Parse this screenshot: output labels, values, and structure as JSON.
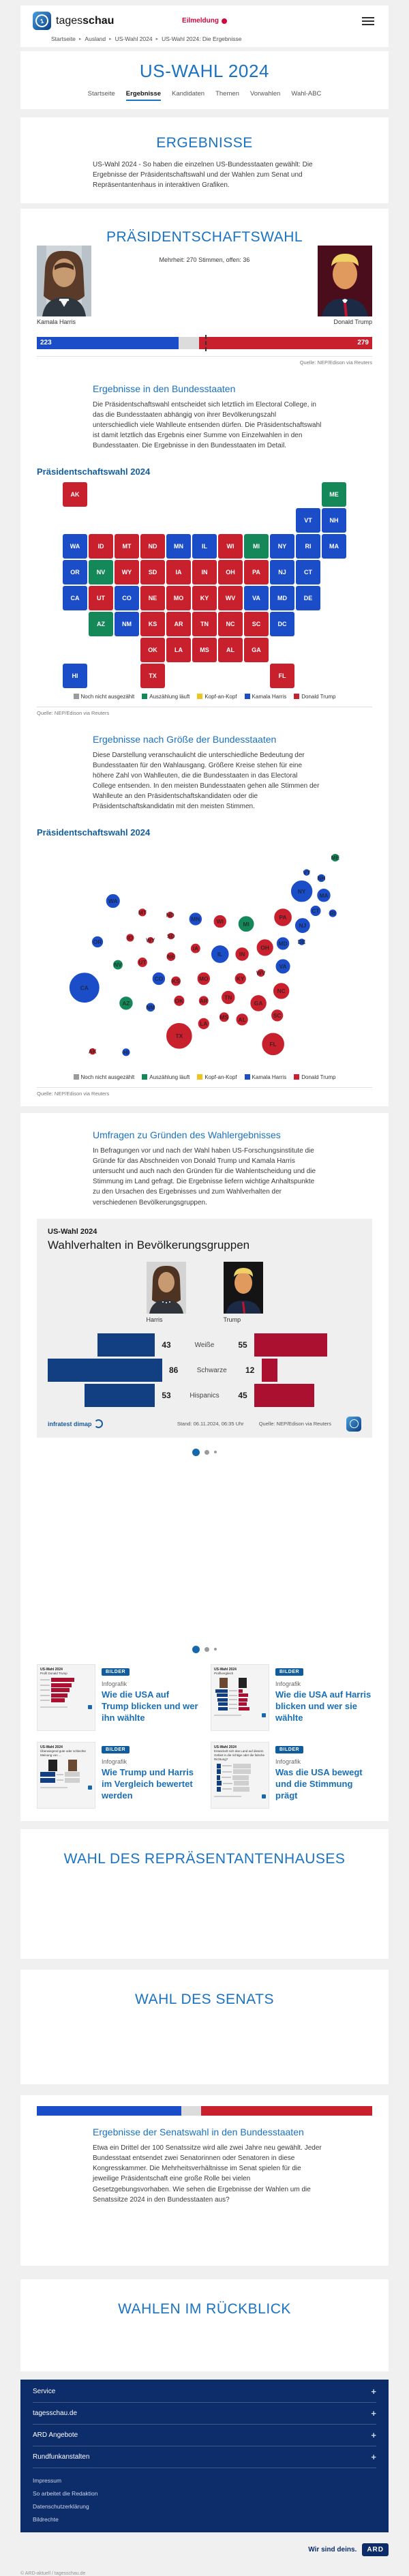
{
  "header": {
    "brand_light": "tages",
    "brand_bold": "schau",
    "breaking_label": "Eilmeldung",
    "breadcrumb": [
      "Startseite",
      "Ausland",
      "US-Wahl 2024",
      "US-Wahl 2024: Die Ergebnisse"
    ]
  },
  "hub": {
    "title": "US-WAHL 2024",
    "tabs": [
      {
        "label": "Startseite",
        "active": false
      },
      {
        "label": "Ergebnisse",
        "active": true
      },
      {
        "label": "Kandidaten",
        "active": false
      },
      {
        "label": "Themen",
        "active": false
      },
      {
        "label": "Vorwahlen",
        "active": false
      },
      {
        "label": "Wahl-ABC",
        "active": false
      }
    ]
  },
  "sections": {
    "ergebnisse": {
      "title": "ERGEBNISSE",
      "intro": "US-Wahl 2024 - So haben die einzelnen US-Bundesstaaten gewählt: Die Ergebnisse der Präsidentschaftswahl und der Wahlen zum Senat und Repräsentantenhaus in interaktiven Grafiken."
    },
    "praesident": {
      "title": "PRÄSIDENTSCHAFTSWAHL",
      "majority_line": "Mehrheit: 270 Stimmen, offen: 36",
      "harris_name": "Kamala Harris",
      "trump_name": "Donald Trump",
      "source": "Quelle: NEP/Edison via Reuters"
    },
    "map_section": {
      "heading": "Ergebnisse in den Bundesstaaten",
      "text": "Die Präsidentschaftswahl entscheidet sich letztlich im Electoral College, in das die Bundesstaaten abhängig von ihrer Bevölkerungszahl unterschiedlich viele Wahlleute entsenden dürfen. Die Präsidentschaftswahl ist damit letztlich das Ergebnis einer Summe von Einzelwahlen in den Bundesstaaten. Die Ergebnisse in den Bundesstaaten im Detail."
    },
    "bubble_section": {
      "heading": "Ergebnisse nach Größe der Bundesstaaten",
      "text": "Diese Darstellung veranschaulicht die unterschiedliche Bedeutung der Bundesstaaten für den Wahlausgang. Größere Kreise stehen für eine höhere Zahl von Wahlleuten, die die Bundesstaaten in das Electoral College entsenden. In den meisten Bundesstaaten gehen alle Stimmen der Wahlleute an den Präsidentschaftskandidaten oder die Präsidentschaftskandidatin mit den meisten Stimmen."
    },
    "umfragen": {
      "heading": "Umfragen zu Gründen des Wahlergebnisses",
      "text": "In Befragungen vor und nach der Wahl haben US-Forschungsinstitute die Gründe für das Abschneiden von Donald Trump und Kamala Harris untersucht und auch nach den Gründen für die Wahlentscheidung und die Stimmung im Land gefragt. Die Ergebnisse liefern wichtige Anhaltspunkte zu den Ursachen des Ergebnisses und zum Wahlverhalten der verschiedenen Bevölkerungsgruppen."
    },
    "repraesentantenhaus": {
      "title": "WAHL DES REPRÄSENTANTENHAUSES"
    },
    "senat": {
      "title": "WAHL DES SENATS"
    },
    "senat_ergebnisse": {
      "heading": "Ergebnisse der Senatswahl in den Bundesstaaten",
      "text": "Etwa ein Drittel der 100 Senatssitze wird alle zwei Jahre neu gewählt. Jeder Bundesstaat entsendet zwei Senatorinnen oder Senatoren in diese Kongresskammer. Die Mehrheitsverhältnisse im Senat spielen für die jeweilige Präsidentschaft eine große Rolle bei vielen Gesetzgebungsvorhaben. Wie sehen die Ergebnisse der Wahlen um die Senatssitze 2024 in den Bundesstaaten aus?"
    },
    "rueckblick": {
      "title": "WAHLEN IM RÜCKBLICK"
    }
  },
  "chart_titles": {
    "map": "Präsidentschaftswahl 2024",
    "bubble": "Präsidentschaftswahl 2024"
  },
  "party_colors": {
    "harris": "#1b4dc8",
    "trump": "#c9202e",
    "counting": "#15885a",
    "tossup": "#eec41e",
    "open": "#9b9b9b"
  },
  "chart_data": [
    {
      "id": "electoral_college_bar",
      "type": "bar",
      "title": "Präsidentschaftswahl Electoral College",
      "majority": 270,
      "open_votes": 36,
      "total": 538,
      "series": [
        {
          "name": "Kamala Harris",
          "value": 223,
          "color": "#1b4dc8"
        },
        {
          "name": "Donald Trump",
          "value": 279,
          "color": "#c9202e"
        }
      ],
      "source": "Quelle: NEP/Edison via Reuters"
    },
    {
      "id": "state_results_map",
      "type": "heatmap",
      "title": "Präsidentschaftswahl 2024",
      "legend": [
        {
          "key": "open",
          "label": "Noch nicht ausgezählt",
          "color": "#9b9b9b"
        },
        {
          "key": "counting",
          "label": "Auszählung läuft",
          "color": "#15885a"
        },
        {
          "key": "tossup",
          "label": "Kopf-an-Kopf",
          "color": "#eec41e"
        },
        {
          "key": "harris",
          "label": "Kamala Harris",
          "color": "#1b4dc8"
        },
        {
          "key": "trump",
          "label": "Donald Trump",
          "color": "#c9202e"
        }
      ],
      "source": "Quelle: NEP/Edison via Reuters",
      "states": [
        {
          "a": "AK",
          "p": "trump",
          "ev": 3,
          "c": 0,
          "r": 0,
          "x": 90,
          "y": 283
        },
        {
          "a": "ME",
          "p": "counting",
          "ev": 4,
          "c": 10,
          "r": 0,
          "x": 387,
          "y": 46
        },
        {
          "a": "VT",
          "p": "harris",
          "ev": 3,
          "c": 9,
          "r": 1,
          "x": 352,
          "y": 64
        },
        {
          "a": "NH",
          "p": "harris",
          "ev": 4,
          "c": 10,
          "r": 1,
          "x": 370,
          "y": 71
        },
        {
          "a": "WA",
          "p": "harris",
          "ev": 12,
          "c": 0,
          "r": 2,
          "x": 115,
          "y": 99
        },
        {
          "a": "ID",
          "p": "trump",
          "ev": 4,
          "c": 1,
          "r": 2,
          "x": 136,
          "y": 144
        },
        {
          "a": "MT",
          "p": "trump",
          "ev": 4,
          "c": 2,
          "r": 2,
          "x": 151,
          "y": 113
        },
        {
          "a": "ND",
          "p": "trump",
          "ev": 3,
          "c": 3,
          "r": 2,
          "x": 185,
          "y": 116
        },
        {
          "a": "MN",
          "p": "harris",
          "ev": 10,
          "c": 4,
          "r": 2,
          "x": 216,
          "y": 121
        },
        {
          "a": "IL",
          "p": "harris",
          "ev": 19,
          "c": 5,
          "r": 2,
          "x": 246,
          "y": 164
        },
        {
          "a": "WI",
          "p": "trump",
          "ev": 10,
          "c": 6,
          "r": 2,
          "x": 246,
          "y": 124
        },
        {
          "a": "MI",
          "p": "counting",
          "ev": 15,
          "c": 7,
          "r": 2,
          "x": 278,
          "y": 127
        },
        {
          "a": "NY",
          "p": "harris",
          "ev": 28,
          "c": 8,
          "r": 2,
          "x": 346,
          "y": 87
        },
        {
          "a": "RI",
          "p": "harris",
          "ev": 4,
          "c": 9,
          "r": 2,
          "x": 384,
          "y": 114
        },
        {
          "a": "MA",
          "p": "harris",
          "ev": 11,
          "c": 10,
          "r": 2,
          "x": 373,
          "y": 92
        },
        {
          "a": "OR",
          "p": "harris",
          "ev": 8,
          "c": 0,
          "r": 3,
          "x": 96,
          "y": 149
        },
        {
          "a": "NV",
          "p": "counting",
          "ev": 6,
          "c": 1,
          "r": 3,
          "x": 121,
          "y": 177
        },
        {
          "a": "WY",
          "p": "trump",
          "ev": 3,
          "c": 2,
          "r": 3,
          "x": 161,
          "y": 147
        },
        {
          "a": "SD",
          "p": "trump",
          "ev": 3,
          "c": 3,
          "r": 3,
          "x": 186,
          "y": 142
        },
        {
          "a": "IA",
          "p": "trump",
          "ev": 6,
          "c": 4,
          "r": 3,
          "x": 216,
          "y": 157
        },
        {
          "a": "IN",
          "p": "trump",
          "ev": 11,
          "c": 5,
          "r": 3,
          "x": 273,
          "y": 164
        },
        {
          "a": "OH",
          "p": "trump",
          "ev": 17,
          "c": 6,
          "r": 3,
          "x": 301,
          "y": 156
        },
        {
          "a": "PA",
          "p": "trump",
          "ev": 19,
          "c": 7,
          "r": 3,
          "x": 323,
          "y": 119
        },
        {
          "a": "NJ",
          "p": "harris",
          "ev": 14,
          "c": 8,
          "r": 3,
          "x": 347,
          "y": 129
        },
        {
          "a": "CT",
          "p": "harris",
          "ev": 7,
          "c": 9,
          "r": 3,
          "x": 363,
          "y": 111
        },
        {
          "a": "CA",
          "p": "harris",
          "ev": 54,
          "c": 0,
          "r": 4,
          "x": 80,
          "y": 205
        },
        {
          "a": "UT",
          "p": "trump",
          "ev": 6,
          "c": 1,
          "r": 4,
          "x": 151,
          "y": 174
        },
        {
          "a": "CO",
          "p": "harris",
          "ev": 10,
          "c": 2,
          "r": 4,
          "x": 171,
          "y": 194
        },
        {
          "a": "NE",
          "p": "trump",
          "ev": 5,
          "c": 3,
          "r": 4,
          "x": 186,
          "y": 167
        },
        {
          "a": "MO",
          "p": "trump",
          "ev": 10,
          "c": 4,
          "r": 4,
          "x": 226,
          "y": 194
        },
        {
          "a": "KY",
          "p": "trump",
          "ev": 8,
          "c": 5,
          "r": 4,
          "x": 271,
          "y": 194
        },
        {
          "a": "WV",
          "p": "trump",
          "ev": 4,
          "c": 6,
          "r": 4,
          "x": 296,
          "y": 187
        },
        {
          "a": "VA",
          "p": "harris",
          "ev": 13,
          "c": 7,
          "r": 4,
          "x": 323,
          "y": 179
        },
        {
          "a": "MD",
          "p": "harris",
          "ev": 10,
          "c": 8,
          "r": 4,
          "x": 323,
          "y": 151
        },
        {
          "a": "DE",
          "p": "harris",
          "ev": 3,
          "c": 9,
          "r": 4,
          "x": 346,
          "y": 149
        },
        {
          "a": "AZ",
          "p": "counting",
          "ev": 11,
          "c": 1,
          "r": 5,
          "x": 131,
          "y": 224
        },
        {
          "a": "NM",
          "p": "harris",
          "ev": 5,
          "c": 2,
          "r": 5,
          "x": 161,
          "y": 229
        },
        {
          "a": "KS",
          "p": "trump",
          "ev": 6,
          "c": 3,
          "r": 5,
          "x": 192,
          "y": 197
        },
        {
          "a": "AR",
          "p": "trump",
          "ev": 6,
          "c": 4,
          "r": 5,
          "x": 226,
          "y": 221
        },
        {
          "a": "TN",
          "p": "trump",
          "ev": 11,
          "c": 5,
          "r": 5,
          "x": 256,
          "y": 217
        },
        {
          "a": "NC",
          "p": "trump",
          "ev": 16,
          "c": 6,
          "r": 5,
          "x": 321,
          "y": 209
        },
        {
          "a": "SC",
          "p": "trump",
          "ev": 9,
          "c": 7,
          "r": 5,
          "x": 316,
          "y": 239
        },
        {
          "a": "DC",
          "p": "harris",
          "ev": 3,
          "c": 8,
          "r": 5,
          "x": null,
          "y": null
        },
        {
          "a": "OK",
          "p": "trump",
          "ev": 7,
          "c": 3,
          "r": 6,
          "x": 196,
          "y": 221
        },
        {
          "a": "LA",
          "p": "trump",
          "ev": 8,
          "c": 4,
          "r": 6,
          "x": 226,
          "y": 249
        },
        {
          "a": "MS",
          "p": "trump",
          "ev": 6,
          "c": 5,
          "r": 6,
          "x": 251,
          "y": 241
        },
        {
          "a": "AL",
          "p": "trump",
          "ev": 9,
          "c": 6,
          "r": 6,
          "x": 273,
          "y": 244
        },
        {
          "a": "GA",
          "p": "trump",
          "ev": 16,
          "c": 7,
          "r": 6,
          "x": 293,
          "y": 224
        },
        {
          "a": "HI",
          "p": "harris",
          "ev": 4,
          "c": 0,
          "r": 7,
          "x": 131,
          "y": 284
        },
        {
          "a": "TX",
          "p": "trump",
          "ev": 40,
          "c": 3,
          "r": 7,
          "x": 196,
          "y": 264
        },
        {
          "a": "FL",
          "p": "trump",
          "ev": 30,
          "c": 8,
          "r": 7,
          "x": 311,
          "y": 274
        }
      ]
    },
    {
      "id": "state_bubble_map",
      "type": "scatter",
      "title": "Präsidentschaftswahl 2024",
      "note": "Kreisgröße entspricht Zahl der Wahlleute; Daten identisch mit state_results_map.states",
      "source": "Quelle: NEP/Edison via Reuters"
    },
    {
      "id": "demographics",
      "type": "bar",
      "kicker": "US-Wahl 2024",
      "title": "Wahlverhalten in Bevölkerungsgruppen",
      "candidates": [
        {
          "name": "Harris"
        },
        {
          "name": "Trump"
        }
      ],
      "categories": [
        "Weiße",
        "Schwarze",
        "Hispanics"
      ],
      "series": [
        {
          "name": "Harris",
          "color": "#123f82",
          "values": [
            43,
            86,
            53
          ]
        },
        {
          "name": "Trump",
          "color": "#ac1030",
          "values": [
            55,
            12,
            45
          ]
        }
      ],
      "stand": "Stand: 06.11.2024, 06:35 Uhr",
      "source": "Quelle: NEP/Edison via Reuters",
      "provider": "infratest dimap"
    },
    {
      "id": "senate_bar",
      "type": "bar",
      "segments": [
        {
          "party": "dem",
          "width_pct": 43,
          "color": "#1b4dc8"
        },
        {
          "party": "offen",
          "width_pct": 6,
          "color": "#dcdcdc"
        },
        {
          "party": "rep",
          "width_pct": 51,
          "color": "#c9202e"
        }
      ]
    }
  ],
  "teasers": [
    {
      "badge": "BILDER",
      "kicker": "Infografik",
      "title": "Wie die USA auf Trump blicken und wer ihn wählte",
      "thumb_kicker": "US-Wahl 2024",
      "thumb_title": "Profil Donald Trump",
      "kind": "profile"
    },
    {
      "badge": "BILDER",
      "kicker": "Infografik",
      "title": "Wie die USA auf Harris blicken und wer sie wählte",
      "thumb_kicker": "US-Wahl 2024",
      "thumb_title": "Profilvergleich",
      "kind": "compare"
    },
    {
      "badge": "BILDER",
      "kicker": "Infografik",
      "title": "Wie Trump und Harris im Vergleich bewertet werden",
      "thumb_kicker": "US-Wahl 2024",
      "thumb_title": "Überwiegend gute oder schlechte Meinung von ...",
      "kind": "opinion"
    },
    {
      "badge": "BILDER",
      "kicker": "Infografik",
      "title": "Was die USA bewegt und die Stimmung prägt",
      "thumb_kicker": "US-Wahl 2024",
      "thumb_title": "Entwickelt sich das Land auf diesem Gebiet in die richtige oder die falsche Richtung?",
      "kind": "mood"
    }
  ],
  "footer": {
    "accordions": [
      "Service",
      "tagesschau.de",
      "ARD Angebote",
      "Rundfunkanstalten"
    ],
    "links": [
      "Impressum",
      "So arbeitet die Redaktion",
      "Datenschutzerklärung",
      "Bildrechte"
    ],
    "claim": "Wir sind deins.",
    "ard": "ARD",
    "copyright": "© ARD-aktuell / tagesschau.de"
  }
}
